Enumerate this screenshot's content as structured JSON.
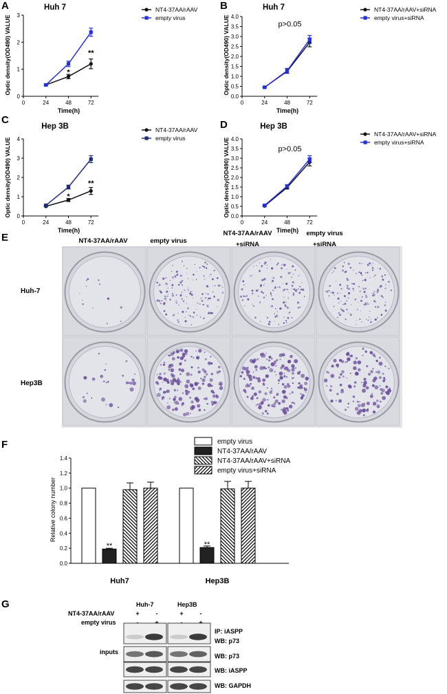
{
  "panel_labels": {
    "A": "A",
    "B": "B",
    "C": "C",
    "D": "D",
    "E": "E",
    "F": "F",
    "G": "G"
  },
  "chart_data": [
    {
      "panel": "A",
      "type": "line",
      "title": "Huh 7",
      "xlabel": "Time(h)",
      "ylabel": "Optic density(OD490) VALUE",
      "x": [
        24,
        48,
        72
      ],
      "xlim": [
        0,
        80
      ],
      "ylim": [
        0,
        3
      ],
      "xticks": [
        "0",
        "24",
        "48",
        "72"
      ],
      "yticks": [
        "0",
        "1",
        "2",
        "3"
      ],
      "series": [
        {
          "name": "NT4-37AA/rAAV",
          "values": [
            0.42,
            0.73,
            1.2
          ],
          "err": [
            0.03,
            0.08,
            0.18
          ],
          "color": "#111111",
          "marker": "circle"
        },
        {
          "name": "empty virus",
          "values": [
            0.42,
            1.2,
            2.37
          ],
          "err": [
            0.03,
            0.1,
            0.15
          ],
          "color": "#2430d9",
          "marker": "square"
        }
      ],
      "annotations": [
        {
          "x": 48,
          "y": 0.9,
          "text": "*"
        },
        {
          "x": 72,
          "y": 1.62,
          "text": "**"
        }
      ]
    },
    {
      "panel": "B",
      "type": "line",
      "title": "Huh 7",
      "xlabel": "Time(h)",
      "ylabel": "Optic density(OD490) VALUE",
      "x": [
        24,
        48,
        72
      ],
      "xlim": [
        0,
        80
      ],
      "ylim": [
        0,
        4
      ],
      "xticks": [
        "0",
        "24",
        "48",
        "72"
      ],
      "yticks": [
        "0.0",
        "0.5",
        "1.0",
        "1.5",
        "2.0",
        "2.5",
        "3.0",
        "3.5",
        "4.0"
      ],
      "series": [
        {
          "name": "NT4-37AA/rAAV+siRNA",
          "values": [
            0.45,
            1.25,
            2.7
          ],
          "err": [
            0.03,
            0.1,
            0.22
          ],
          "color": "#111111",
          "marker": "circle"
        },
        {
          "name": "empty virus+siRNA",
          "values": [
            0.45,
            1.28,
            2.85
          ],
          "err": [
            0.03,
            0.12,
            0.2
          ],
          "color": "#2430d9",
          "marker": "square"
        }
      ],
      "annotations": [
        {
          "x": 48,
          "y": 3.5,
          "text": "p>0.05"
        }
      ]
    },
    {
      "panel": "C",
      "type": "line",
      "title": "Hep 3B",
      "xlabel": "Time(h)",
      "ylabel": "Optic density(OD490) VALUE",
      "x": [
        24,
        48,
        72
      ],
      "xlim": [
        0,
        80
      ],
      "ylim": [
        0,
        4
      ],
      "xticks": [
        "0",
        "24",
        "48",
        "72"
      ],
      "yticks": [
        "0",
        "1",
        "2",
        "3",
        "4"
      ],
      "series": [
        {
          "name": "NT4-37AA/rAAV",
          "values": [
            0.5,
            0.83,
            1.3
          ],
          "err": [
            0.03,
            0.08,
            0.18
          ],
          "color": "#111111",
          "marker": "circle"
        },
        {
          "name": "empty virus",
          "values": [
            0.55,
            1.5,
            2.95
          ],
          "err": [
            0.03,
            0.1,
            0.18
          ],
          "color": "#1b2b7a",
          "marker": "square"
        }
      ],
      "annotations": [
        {
          "x": 48,
          "y": 1.03,
          "text": "*"
        },
        {
          "x": 72,
          "y": 1.72,
          "text": "**"
        }
      ]
    },
    {
      "panel": "D",
      "type": "line",
      "title": "Hep 3B",
      "xlabel": "Time(h)",
      "ylabel": "Optic density(OD490) VALUE",
      "x": [
        24,
        48,
        72
      ],
      "xlim": [
        0,
        80
      ],
      "ylim": [
        0,
        4
      ],
      "xticks": [
        "0",
        "24",
        "48",
        "72"
      ],
      "yticks": [
        "0.0",
        "0.5",
        "1.0",
        "1.5",
        "2.0",
        "2.5",
        "3.0",
        "3.5",
        "4.0"
      ],
      "series": [
        {
          "name": "NT4-37AA/rAAV+siRNA",
          "values": [
            0.52,
            1.48,
            2.8
          ],
          "err": [
            0.03,
            0.08,
            0.2
          ],
          "color": "#111111",
          "marker": "circle"
        },
        {
          "name": "empty virus+siRNA",
          "values": [
            0.55,
            1.55,
            2.95
          ],
          "err": [
            0.03,
            0.08,
            0.18
          ],
          "color": "#2430d9",
          "marker": "square"
        }
      ],
      "annotations": [
        {
          "x": 48,
          "y": 3.35,
          "text": "p>0.05"
        }
      ]
    },
    {
      "panel": "F",
      "type": "bar",
      "ylabel": "Relative colony number",
      "categories": [
        "Huh7",
        "Hep3B"
      ],
      "ylim": [
        0,
        1.4
      ],
      "yticks": [
        "0.0",
        "0.2",
        "0.4",
        "0.6",
        "0.8",
        "1.0",
        "1.2",
        "1.4"
      ],
      "series": [
        {
          "name": "empty virus",
          "values": [
            1.0,
            1.0
          ],
          "err": [
            0,
            0
          ],
          "pattern": "white"
        },
        {
          "name": "NT4-37AA/rAAV",
          "values": [
            0.19,
            0.21
          ],
          "err": [
            0.01,
            0.02
          ],
          "pattern": "black"
        },
        {
          "name": "NT4-37AA/rAAV+siRNA",
          "values": [
            0.98,
            0.99
          ],
          "err": [
            0.09,
            0.1
          ],
          "pattern": "back"
        },
        {
          "name": "empty virus+siRNA",
          "values": [
            1.0,
            1.0
          ],
          "err": [
            0.08,
            0.09
          ],
          "pattern": "fwd"
        }
      ],
      "annotations": [
        {
          "category": 0,
          "series": 1,
          "text": "**"
        },
        {
          "category": 1,
          "series": 1,
          "text": "**"
        }
      ]
    }
  ],
  "photos": {
    "columns": [
      "NT4-37AA/rAAV",
      "empty virus",
      "NT4-37AA/rAAV\n+siRNA",
      "empty virus\n+siRNA"
    ],
    "rows": [
      "Huh-7",
      "Hep3B"
    ],
    "density": [
      [
        0.05,
        0.55,
        0.5,
        0.55
      ],
      [
        0.1,
        0.6,
        0.6,
        0.45
      ]
    ],
    "dish_color": "#d5d6de",
    "stain_color": "#6a4f9c"
  },
  "blot": {
    "cell_lines": [
      "Huh-7",
      "Hep3B"
    ],
    "row_labels": [
      "NT4-37AA/rAAV",
      "empty virus"
    ],
    "signs": [
      [
        "+",
        "-",
        "+",
        "-"
      ],
      [
        "-",
        "+",
        "-",
        "+"
      ]
    ],
    "inputs_label": "inputs",
    "bands": [
      {
        "label": "IP: iASPP",
        "label2": "WB: p73",
        "intensity": [
          0.15,
          0.9,
          0.15,
          0.9
        ]
      },
      {
        "label": "WB: p73",
        "intensity": [
          0.6,
          0.75,
          0.6,
          0.7
        ]
      },
      {
        "label": "WB: iASPP",
        "intensity": [
          0.85,
          0.85,
          0.85,
          0.85
        ]
      },
      {
        "label": "WB: GAPDH",
        "intensity": [
          0.85,
          0.85,
          0.85,
          0.85
        ]
      }
    ]
  }
}
